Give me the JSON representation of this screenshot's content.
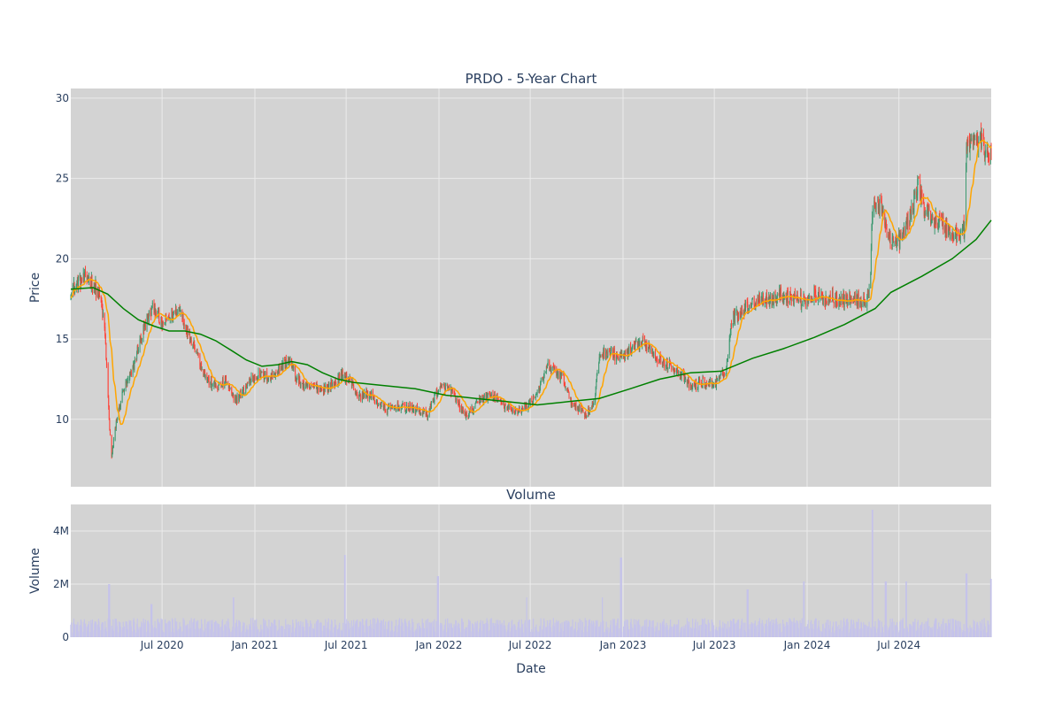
{
  "chart_data": {
    "type": "candlestick",
    "title": "PRDO - 5-Year Chart",
    "price_axis": {
      "label": "Price",
      "range": [
        5.8,
        30.6
      ],
      "ticks": [
        10,
        15,
        20,
        25,
        30
      ]
    },
    "volume_title": "Volume",
    "volume_axis": {
      "label": "Volume",
      "range": [
        0,
        5000000
      ],
      "ticks": [
        0,
        2000000,
        4000000
      ],
      "tick_labels": [
        "0",
        "2M",
        "4M"
      ]
    },
    "x_axis": {
      "label": "Date",
      "range": [
        "2020-01-02",
        "2024-12-31"
      ],
      "ticks": [
        "2020-07-01",
        "2021-01-01",
        "2021-07-01",
        "2022-01-01",
        "2022-07-01",
        "2023-01-01",
        "2023-07-01",
        "2024-01-01",
        "2024-07-01"
      ],
      "tick_labels": [
        "Jul 2020",
        "Jan 2021",
        "Jul 2021",
        "Jan 2022",
        "Jul 2022",
        "Jan 2023",
        "Jul 2023",
        "Jan 2024",
        "Jul 2024"
      ]
    },
    "grid": true,
    "legend": "none",
    "colors": {
      "plot_bg": "#d3d3d3",
      "grid": "#ebebeb",
      "increasing": "#3d9970",
      "decreasing": "#ff4136",
      "ma_short": "#ffa500",
      "ma_long": "#008000",
      "volume": "#c5c3ea"
    },
    "price_path": [
      [
        "2020-01-02",
        18.0
      ],
      [
        "2020-01-20",
        18.6
      ],
      [
        "2020-02-05",
        18.8
      ],
      [
        "2020-02-20",
        18.2
      ],
      [
        "2020-03-02",
        17.4
      ],
      [
        "2020-03-10",
        15.2
      ],
      [
        "2020-03-18",
        10.0
      ],
      [
        "2020-03-23",
        7.6
      ],
      [
        "2020-04-01",
        9.8
      ],
      [
        "2020-04-15",
        11.8
      ],
      [
        "2020-05-01",
        12.8
      ],
      [
        "2020-05-15",
        14.5
      ],
      [
        "2020-06-01",
        16.2
      ],
      [
        "2020-06-15",
        17.0
      ],
      [
        "2020-07-01",
        15.8
      ],
      [
        "2020-07-20",
        16.5
      ],
      [
        "2020-08-05",
        16.9
      ],
      [
        "2020-08-20",
        15.5
      ],
      [
        "2020-09-05",
        14.5
      ],
      [
        "2020-09-20",
        13.0
      ],
      [
        "2020-10-05",
        12.2
      ],
      [
        "2020-10-20",
        12.0
      ],
      [
        "2020-11-05",
        12.4
      ],
      [
        "2020-11-20",
        11.2
      ],
      [
        "2020-12-05",
        11.5
      ],
      [
        "2020-12-20",
        12.4
      ],
      [
        "2021-01-10",
        12.8
      ],
      [
        "2021-02-01",
        12.6
      ],
      [
        "2021-02-20",
        13.2
      ],
      [
        "2021-03-10",
        13.7
      ],
      [
        "2021-03-25",
        12.5
      ],
      [
        "2021-04-10",
        12.0
      ],
      [
        "2021-05-01",
        12.0
      ],
      [
        "2021-05-20",
        11.9
      ],
      [
        "2021-06-10",
        12.3
      ],
      [
        "2021-06-25",
        12.8
      ],
      [
        "2021-07-10",
        12.4
      ],
      [
        "2021-07-25",
        11.4
      ],
      [
        "2021-08-15",
        11.6
      ],
      [
        "2021-09-01",
        11.0
      ],
      [
        "2021-09-20",
        10.6
      ],
      [
        "2021-10-10",
        10.8
      ],
      [
        "2021-11-01",
        10.7
      ],
      [
        "2021-11-20",
        10.6
      ],
      [
        "2021-12-10",
        10.3
      ],
      [
        "2021-12-25",
        11.6
      ],
      [
        "2022-01-10",
        12.0
      ],
      [
        "2022-01-25",
        11.8
      ],
      [
        "2022-02-10",
        10.8
      ],
      [
        "2022-02-25",
        10.2
      ],
      [
        "2022-03-10",
        10.6
      ],
      [
        "2022-03-25",
        11.3
      ],
      [
        "2022-04-15",
        11.5
      ],
      [
        "2022-05-05",
        11.0
      ],
      [
        "2022-05-25",
        10.5
      ],
      [
        "2022-06-15",
        10.6
      ],
      [
        "2022-07-05",
        11.2
      ],
      [
        "2022-07-20",
        12.0
      ],
      [
        "2022-08-05",
        13.3
      ],
      [
        "2022-08-20",
        13.0
      ],
      [
        "2022-09-05",
        12.5
      ],
      [
        "2022-09-20",
        11.0
      ],
      [
        "2022-10-05",
        10.7
      ],
      [
        "2022-10-20",
        10.3
      ],
      [
        "2022-11-05",
        11.0
      ],
      [
        "2022-11-15",
        14.0
      ],
      [
        "2022-12-05",
        14.2
      ],
      [
        "2022-12-25",
        13.8
      ],
      [
        "2023-01-15",
        14.2
      ],
      [
        "2023-02-05",
        14.8
      ],
      [
        "2023-02-20",
        14.6
      ],
      [
        "2023-03-10",
        13.8
      ],
      [
        "2023-03-25",
        13.5
      ],
      [
        "2023-04-10",
        13.3
      ],
      [
        "2023-05-01",
        12.6
      ],
      [
        "2023-05-15",
        12.0
      ],
      [
        "2023-06-05",
        12.3
      ],
      [
        "2023-06-25",
        12.2
      ],
      [
        "2023-07-10",
        12.4
      ],
      [
        "2023-07-25",
        13.2
      ],
      [
        "2023-08-05",
        16.3
      ],
      [
        "2023-08-25",
        16.8
      ],
      [
        "2023-09-15",
        17.2
      ],
      [
        "2023-10-01",
        17.6
      ],
      [
        "2023-10-20",
        17.4
      ],
      [
        "2023-11-10",
        17.8
      ],
      [
        "2023-12-01",
        17.6
      ],
      [
        "2023-12-25",
        17.4
      ],
      [
        "2024-01-15",
        17.7
      ],
      [
        "2024-02-05",
        17.5
      ],
      [
        "2024-02-25",
        17.6
      ],
      [
        "2024-03-15",
        17.4
      ],
      [
        "2024-04-05",
        17.5
      ],
      [
        "2024-04-25",
        17.2
      ],
      [
        "2024-05-05",
        18.2
      ],
      [
        "2024-05-10",
        23.6
      ],
      [
        "2024-05-25",
        23.2
      ],
      [
        "2024-06-10",
        21.5
      ],
      [
        "2024-06-25",
        20.8
      ],
      [
        "2024-07-10",
        21.6
      ],
      [
        "2024-07-25",
        22.8
      ],
      [
        "2024-08-08",
        24.8
      ],
      [
        "2024-08-20",
        23.0
      ],
      [
        "2024-09-05",
        22.6
      ],
      [
        "2024-09-25",
        22.2
      ],
      [
        "2024-10-10",
        21.6
      ],
      [
        "2024-10-25",
        21.4
      ],
      [
        "2024-11-08",
        22.0
      ],
      [
        "2024-11-12",
        26.8
      ],
      [
        "2024-11-25",
        27.4
      ],
      [
        "2024-12-10",
        27.2
      ],
      [
        "2024-12-31",
        26.4
      ]
    ],
    "ma_long_path": [
      [
        "2020-01-02",
        18.1
      ],
      [
        "2020-02-15",
        18.2
      ],
      [
        "2020-03-15",
        17.8
      ],
      [
        "2020-04-15",
        16.9
      ],
      [
        "2020-05-15",
        16.2
      ],
      [
        "2020-06-15",
        15.8
      ],
      [
        "2020-07-15",
        15.5
      ],
      [
        "2020-08-15",
        15.5
      ],
      [
        "2020-09-15",
        15.3
      ],
      [
        "2020-10-15",
        14.9
      ],
      [
        "2020-11-15",
        14.3
      ],
      [
        "2020-12-15",
        13.7
      ],
      [
        "2021-01-15",
        13.3
      ],
      [
        "2021-02-15",
        13.4
      ],
      [
        "2021-03-15",
        13.6
      ],
      [
        "2021-04-15",
        13.4
      ],
      [
        "2021-05-15",
        12.9
      ],
      [
        "2021-06-15",
        12.5
      ],
      [
        "2021-07-15",
        12.3
      ],
      [
        "2021-09-15",
        12.1
      ],
      [
        "2021-11-15",
        11.9
      ],
      [
        "2022-01-15",
        11.5
      ],
      [
        "2022-03-15",
        11.3
      ],
      [
        "2022-05-15",
        11.1
      ],
      [
        "2022-07-15",
        10.9
      ],
      [
        "2022-09-15",
        11.1
      ],
      [
        "2022-11-15",
        11.3
      ],
      [
        "2023-01-15",
        11.9
      ],
      [
        "2023-03-15",
        12.5
      ],
      [
        "2023-05-15",
        12.9
      ],
      [
        "2023-07-15",
        13.0
      ],
      [
        "2023-09-15",
        13.8
      ],
      [
        "2023-11-15",
        14.4
      ],
      [
        "2024-01-15",
        15.1
      ],
      [
        "2024-03-15",
        15.9
      ],
      [
        "2024-05-15",
        16.9
      ],
      [
        "2024-06-15",
        17.9
      ],
      [
        "2024-08-15",
        18.9
      ],
      [
        "2024-10-15",
        20.0
      ],
      [
        "2024-12-01",
        21.2
      ],
      [
        "2024-12-31",
        22.4
      ]
    ],
    "volume_spikes": [
      [
        "2020-03-18",
        2000000
      ],
      [
        "2020-06-10",
        1250000
      ],
      [
        "2020-11-20",
        1500000
      ],
      [
        "2021-06-28",
        3100000
      ],
      [
        "2021-12-30",
        2300000
      ],
      [
        "2022-06-25",
        1500000
      ],
      [
        "2022-11-20",
        1500000
      ],
      [
        "2022-12-28",
        3000000
      ],
      [
        "2023-09-05",
        1800000
      ],
      [
        "2023-12-25",
        2100000
      ],
      [
        "2024-05-10",
        4800000
      ],
      [
        "2024-06-05",
        2100000
      ],
      [
        "2024-07-15",
        2100000
      ],
      [
        "2024-11-12",
        2400000
      ],
      [
        "2024-12-31",
        2200000
      ]
    ],
    "volume_baseline": 500000
  }
}
